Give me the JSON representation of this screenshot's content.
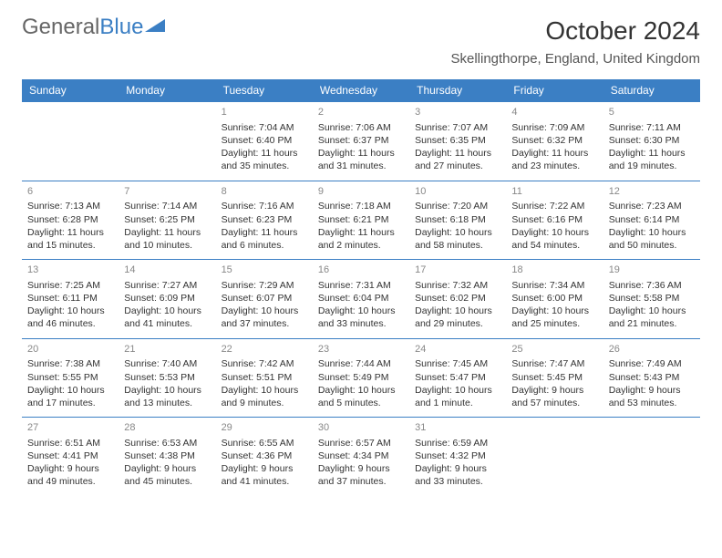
{
  "logo": {
    "text1": "General",
    "text2": "Blue"
  },
  "header": {
    "month_title": "October 2024",
    "location": "Skellingthorpe, England, United Kingdom"
  },
  "colors": {
    "header_bg": "#3b7fc4",
    "header_text": "#ffffff",
    "border": "#3b7fc4",
    "daynum": "#888888",
    "body_text": "#333333",
    "logo_gray": "#666666",
    "logo_blue": "#3b7fc4",
    "page_bg": "#ffffff"
  },
  "day_names": [
    "Sunday",
    "Monday",
    "Tuesday",
    "Wednesday",
    "Thursday",
    "Friday",
    "Saturday"
  ],
  "weeks": [
    [
      {
        "n": "",
        "sr": "",
        "ss": "",
        "dl1": "",
        "dl2": ""
      },
      {
        "n": "",
        "sr": "",
        "ss": "",
        "dl1": "",
        "dl2": ""
      },
      {
        "n": "1",
        "sr": "Sunrise: 7:04 AM",
        "ss": "Sunset: 6:40 PM",
        "dl1": "Daylight: 11 hours",
        "dl2": "and 35 minutes."
      },
      {
        "n": "2",
        "sr": "Sunrise: 7:06 AM",
        "ss": "Sunset: 6:37 PM",
        "dl1": "Daylight: 11 hours",
        "dl2": "and 31 minutes."
      },
      {
        "n": "3",
        "sr": "Sunrise: 7:07 AM",
        "ss": "Sunset: 6:35 PM",
        "dl1": "Daylight: 11 hours",
        "dl2": "and 27 minutes."
      },
      {
        "n": "4",
        "sr": "Sunrise: 7:09 AM",
        "ss": "Sunset: 6:32 PM",
        "dl1": "Daylight: 11 hours",
        "dl2": "and 23 minutes."
      },
      {
        "n": "5",
        "sr": "Sunrise: 7:11 AM",
        "ss": "Sunset: 6:30 PM",
        "dl1": "Daylight: 11 hours",
        "dl2": "and 19 minutes."
      }
    ],
    [
      {
        "n": "6",
        "sr": "Sunrise: 7:13 AM",
        "ss": "Sunset: 6:28 PM",
        "dl1": "Daylight: 11 hours",
        "dl2": "and 15 minutes."
      },
      {
        "n": "7",
        "sr": "Sunrise: 7:14 AM",
        "ss": "Sunset: 6:25 PM",
        "dl1": "Daylight: 11 hours",
        "dl2": "and 10 minutes."
      },
      {
        "n": "8",
        "sr": "Sunrise: 7:16 AM",
        "ss": "Sunset: 6:23 PM",
        "dl1": "Daylight: 11 hours",
        "dl2": "and 6 minutes."
      },
      {
        "n": "9",
        "sr": "Sunrise: 7:18 AM",
        "ss": "Sunset: 6:21 PM",
        "dl1": "Daylight: 11 hours",
        "dl2": "and 2 minutes."
      },
      {
        "n": "10",
        "sr": "Sunrise: 7:20 AM",
        "ss": "Sunset: 6:18 PM",
        "dl1": "Daylight: 10 hours",
        "dl2": "and 58 minutes."
      },
      {
        "n": "11",
        "sr": "Sunrise: 7:22 AM",
        "ss": "Sunset: 6:16 PM",
        "dl1": "Daylight: 10 hours",
        "dl2": "and 54 minutes."
      },
      {
        "n": "12",
        "sr": "Sunrise: 7:23 AM",
        "ss": "Sunset: 6:14 PM",
        "dl1": "Daylight: 10 hours",
        "dl2": "and 50 minutes."
      }
    ],
    [
      {
        "n": "13",
        "sr": "Sunrise: 7:25 AM",
        "ss": "Sunset: 6:11 PM",
        "dl1": "Daylight: 10 hours",
        "dl2": "and 46 minutes."
      },
      {
        "n": "14",
        "sr": "Sunrise: 7:27 AM",
        "ss": "Sunset: 6:09 PM",
        "dl1": "Daylight: 10 hours",
        "dl2": "and 41 minutes."
      },
      {
        "n": "15",
        "sr": "Sunrise: 7:29 AM",
        "ss": "Sunset: 6:07 PM",
        "dl1": "Daylight: 10 hours",
        "dl2": "and 37 minutes."
      },
      {
        "n": "16",
        "sr": "Sunrise: 7:31 AM",
        "ss": "Sunset: 6:04 PM",
        "dl1": "Daylight: 10 hours",
        "dl2": "and 33 minutes."
      },
      {
        "n": "17",
        "sr": "Sunrise: 7:32 AM",
        "ss": "Sunset: 6:02 PM",
        "dl1": "Daylight: 10 hours",
        "dl2": "and 29 minutes."
      },
      {
        "n": "18",
        "sr": "Sunrise: 7:34 AM",
        "ss": "Sunset: 6:00 PM",
        "dl1": "Daylight: 10 hours",
        "dl2": "and 25 minutes."
      },
      {
        "n": "19",
        "sr": "Sunrise: 7:36 AM",
        "ss": "Sunset: 5:58 PM",
        "dl1": "Daylight: 10 hours",
        "dl2": "and 21 minutes."
      }
    ],
    [
      {
        "n": "20",
        "sr": "Sunrise: 7:38 AM",
        "ss": "Sunset: 5:55 PM",
        "dl1": "Daylight: 10 hours",
        "dl2": "and 17 minutes."
      },
      {
        "n": "21",
        "sr": "Sunrise: 7:40 AM",
        "ss": "Sunset: 5:53 PM",
        "dl1": "Daylight: 10 hours",
        "dl2": "and 13 minutes."
      },
      {
        "n": "22",
        "sr": "Sunrise: 7:42 AM",
        "ss": "Sunset: 5:51 PM",
        "dl1": "Daylight: 10 hours",
        "dl2": "and 9 minutes."
      },
      {
        "n": "23",
        "sr": "Sunrise: 7:44 AM",
        "ss": "Sunset: 5:49 PM",
        "dl1": "Daylight: 10 hours",
        "dl2": "and 5 minutes."
      },
      {
        "n": "24",
        "sr": "Sunrise: 7:45 AM",
        "ss": "Sunset: 5:47 PM",
        "dl1": "Daylight: 10 hours",
        "dl2": "and 1 minute."
      },
      {
        "n": "25",
        "sr": "Sunrise: 7:47 AM",
        "ss": "Sunset: 5:45 PM",
        "dl1": "Daylight: 9 hours",
        "dl2": "and 57 minutes."
      },
      {
        "n": "26",
        "sr": "Sunrise: 7:49 AM",
        "ss": "Sunset: 5:43 PM",
        "dl1": "Daylight: 9 hours",
        "dl2": "and 53 minutes."
      }
    ],
    [
      {
        "n": "27",
        "sr": "Sunrise: 6:51 AM",
        "ss": "Sunset: 4:41 PM",
        "dl1": "Daylight: 9 hours",
        "dl2": "and 49 minutes."
      },
      {
        "n": "28",
        "sr": "Sunrise: 6:53 AM",
        "ss": "Sunset: 4:38 PM",
        "dl1": "Daylight: 9 hours",
        "dl2": "and 45 minutes."
      },
      {
        "n": "29",
        "sr": "Sunrise: 6:55 AM",
        "ss": "Sunset: 4:36 PM",
        "dl1": "Daylight: 9 hours",
        "dl2": "and 41 minutes."
      },
      {
        "n": "30",
        "sr": "Sunrise: 6:57 AM",
        "ss": "Sunset: 4:34 PM",
        "dl1": "Daylight: 9 hours",
        "dl2": "and 37 minutes."
      },
      {
        "n": "31",
        "sr": "Sunrise: 6:59 AM",
        "ss": "Sunset: 4:32 PM",
        "dl1": "Daylight: 9 hours",
        "dl2": "and 33 minutes."
      },
      {
        "n": "",
        "sr": "",
        "ss": "",
        "dl1": "",
        "dl2": ""
      },
      {
        "n": "",
        "sr": "",
        "ss": "",
        "dl1": "",
        "dl2": ""
      }
    ]
  ]
}
